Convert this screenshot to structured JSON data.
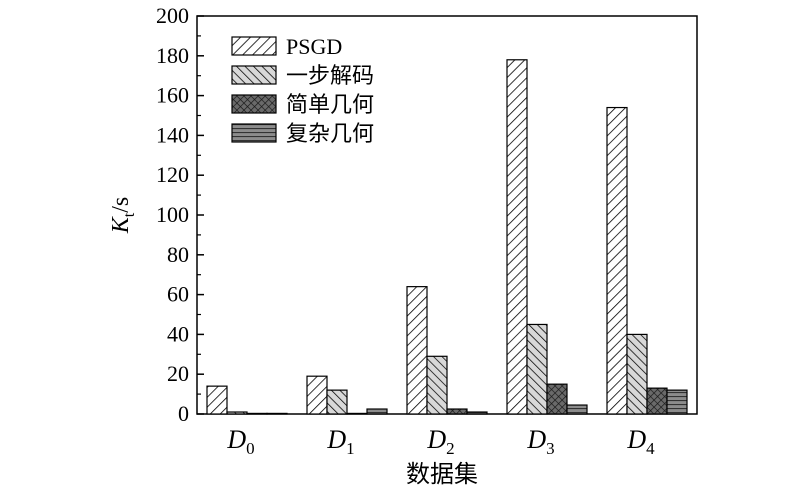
{
  "chart_data": {
    "type": "bar",
    "ylabel_symbol": "K",
    "ylabel_subscript": "t",
    "ylabel_unit": "/s",
    "xlabel": "数据集",
    "ylim": [
      0,
      200
    ],
    "yticks": [
      0,
      20,
      40,
      60,
      80,
      100,
      120,
      140,
      160,
      180,
      200
    ],
    "categories": [
      {
        "base": "D",
        "sub": "0"
      },
      {
        "base": "D",
        "sub": "1"
      },
      {
        "base": "D",
        "sub": "2"
      },
      {
        "base": "D",
        "sub": "3"
      },
      {
        "base": "D",
        "sub": "4"
      }
    ],
    "series": [
      {
        "name": "PSGD",
        "pattern": "hatch-forward",
        "values": [
          14,
          19,
          64,
          178,
          154
        ]
      },
      {
        "name": "一步解码",
        "pattern": "hatch-back-gray",
        "values": [
          1,
          12,
          29,
          45,
          40
        ]
      },
      {
        "name": "简单几何",
        "pattern": "crosshatch-dark",
        "values": [
          0.3,
          0.3,
          2.5,
          15,
          13
        ]
      },
      {
        "name": "复杂几何",
        "pattern": "horizontal-gray",
        "values": [
          0.3,
          2.5,
          1,
          4.5,
          12
        ]
      }
    ],
    "legend_position": "top-left",
    "grid": false
  }
}
